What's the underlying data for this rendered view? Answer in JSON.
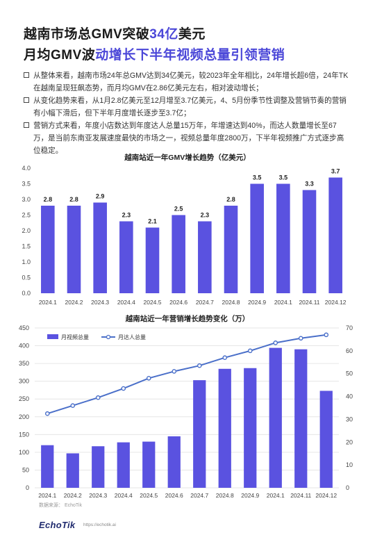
{
  "title_line1": {
    "pre": "越南市场总GMV突破",
    "highlight": "34亿",
    "post": "美元"
  },
  "title_line2": {
    "pre": "月均GMV波",
    "highlight": "动增长下半年视频总量引领营销"
  },
  "bullets": [
    "从整体来看，越南市场24年总GMV达到34亿美元，较2023年全年相比，24年增长超6倍，24年TK在越南呈现狂飙态势，而月均GMV在2.86亿美元左右，相对波动增长；",
    "从变化趋势来看，从1月2.8亿美元至12月增至3.7亿美元，4、5月份季节性调整及营销节奏的营销有小幅下滑后，但下半年月度增长逐步至3.7亿；",
    "营销方式来看，年度小店数达到年度达人总量15万年，年增速达到40%，而达人数量增长至67万，是当前东南亚发展速度最快的市场之一，视频总量年度2800万，下半年视频推广方式逐步高位稳定。"
  ],
  "chart_data": [
    {
      "type": "bar",
      "title": "越南站近一年GMV增长趋势（亿美元）",
      "categories": [
        "2024.1",
        "2024.2",
        "2024.3",
        "2024.4",
        "2024.5",
        "2024.6",
        "2024.7",
        "2024.8",
        "2024.9",
        "2024.1",
        "2024.11",
        "2024.12"
      ],
      "values": [
        2.8,
        2.8,
        2.9,
        2.3,
        2.1,
        2.5,
        2.3,
        2.8,
        3.5,
        3.5,
        3.3,
        3.7
      ],
      "data_labels": [
        "2.8",
        "2.8",
        "2.9",
        "2.3",
        "2.1",
        "2.5",
        "2.3",
        "2.8",
        "3.5",
        "3.5",
        "3.3",
        "3.7"
      ],
      "ylim": [
        0,
        4.0
      ],
      "yticks": [
        "0.0",
        "0.5",
        "1.0",
        "1.5",
        "2.0",
        "2.5",
        "3.0",
        "3.5",
        "4.0"
      ],
      "color": "#5a52e0",
      "grid": false
    },
    {
      "type": "bar+line",
      "title": "越南站近一年营销增长趋势变化（万）",
      "categories": [
        "2024.1",
        "2024.2",
        "2024.3",
        "2024.4",
        "2024.5",
        "2024.6",
        "2024.7",
        "2024.8",
        "2024.9",
        "2024.1",
        "2024.11",
        "2024.12"
      ],
      "series": [
        {
          "name": "月视频总量",
          "type": "bar",
          "axis": "left",
          "color": "#5a52e0",
          "values": [
            120,
            97,
            117,
            128,
            130,
            145,
            303,
            335,
            337,
            394,
            390,
            273
          ]
        },
        {
          "name": "月达人总量",
          "type": "line",
          "axis": "right",
          "color": "#4a6fc9",
          "values": [
            32.5,
            36,
            39.5,
            43.5,
            48,
            51,
            53.5,
            57,
            60,
            63.5,
            65.5,
            67
          ]
        }
      ],
      "ylim_left": [
        0,
        450
      ],
      "yticks_left": [
        "0",
        "50",
        "100",
        "150",
        "200",
        "250",
        "300",
        "350",
        "400",
        "450"
      ],
      "ylim_right": [
        0,
        70
      ],
      "yticks_right": [
        "0",
        "10",
        "20",
        "30",
        "40",
        "50",
        "60",
        "70"
      ],
      "legend_position": "top-left",
      "grid": true
    }
  ],
  "footer": {
    "source": "数据来源：  EchoTik",
    "logo": "EchoTik",
    "url": "https://echotik.ai"
  }
}
